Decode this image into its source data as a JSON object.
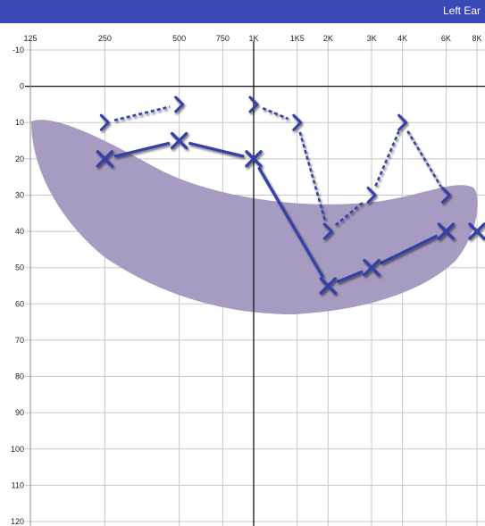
{
  "window": {
    "title": "Left Ear"
  },
  "chart_data": {
    "type": "scatter",
    "title": "Left Ear",
    "xlabel": "",
    "ylabel": "",
    "x_scale": "log",
    "y_inverted": true,
    "x_ticks": [
      {
        "freq": 125,
        "label": "125"
      },
      {
        "freq": 250,
        "label": "250"
      },
      {
        "freq": 500,
        "label": "500"
      },
      {
        "freq": 750,
        "label": "750"
      },
      {
        "freq": 1000,
        "label": "1K"
      },
      {
        "freq": 1500,
        "label": "1K5"
      },
      {
        "freq": 2000,
        "label": "2K"
      },
      {
        "freq": 3000,
        "label": "3K"
      },
      {
        "freq": 4000,
        "label": "4K"
      },
      {
        "freq": 6000,
        "label": "6K"
      },
      {
        "freq": 8000,
        "label": "8K"
      }
    ],
    "y_ticks": [
      -10,
      0,
      10,
      20,
      30,
      40,
      50,
      60,
      70,
      80,
      90,
      100,
      110,
      120
    ],
    "ylim": [
      -10,
      120
    ],
    "grid": true,
    "colors": {
      "series": "#3341a8",
      "speech_banana": "#a89bc2",
      "header": "#3949b6"
    },
    "series": [
      {
        "symbol": "x",
        "line_style": "solid",
        "points": [
          {
            "x": 250,
            "y": 20
          },
          {
            "x": 500,
            "y": 15
          },
          {
            "x": 1000,
            "y": 20
          },
          {
            "x": 2000,
            "y": 55
          },
          {
            "x": 3000,
            "y": 50
          },
          {
            "x": 6000,
            "y": 40
          },
          {
            "x": 8000,
            "y": 40
          }
        ]
      },
      {
        "symbol": ">",
        "line_style": "dashed",
        "points": [
          {
            "x": 250,
            "y": 10
          },
          {
            "x": 500,
            "y": 5
          },
          {
            "x": 1000,
            "y": 5
          },
          {
            "x": 1500,
            "y": 10
          },
          {
            "x": 2000,
            "y": 40
          },
          {
            "x": 3000,
            "y": 30
          },
          {
            "x": 4000,
            "y": 10
          },
          {
            "x": 6000,
            "y": 30
          }
        ]
      }
    ]
  }
}
